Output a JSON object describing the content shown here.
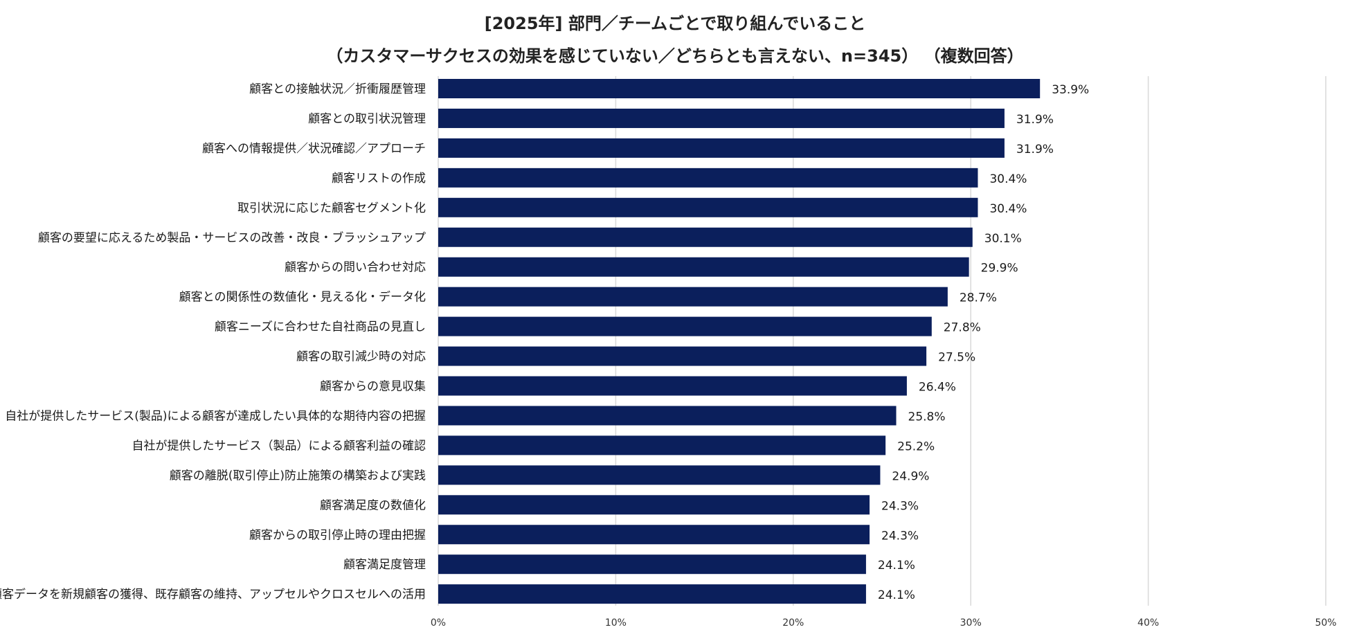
{
  "chart_data": {
    "type": "bar",
    "orientation": "horizontal",
    "title": "[2025年] 部門／チームごとで取り組んでいること",
    "subtitle": "（カスタマーサクセスの効果を感じていない／どちらとも言えない、n=345） （複数回答）",
    "categories": [
      "顧客との接触状況／折衝履歴管理",
      "顧客との取引状況管理",
      "顧客への情報提供／状況確認／アプローチ",
      "顧客リストの作成",
      "取引状況に応じた顧客セグメント化",
      "顧客の要望に応えるため製品・サービスの改善・改良・ブラッシュアップ",
      "顧客からの問い合わせ対応",
      "顧客との関係性の数値化・見える化・データ化",
      "顧客ニーズに合わせた自社商品の見直し",
      "顧客の取引減少時の対応",
      "顧客からの意見収集",
      "自社が提供したサービス(製品)による顧客が達成したい具体的な期待内容の把握",
      "自社が提供したサービス（製品）による顧客利益の確認",
      "顧客の離脱(取引停止)防止施策の構築および実践",
      "顧客満足度の数値化",
      "顧客からの取引停止時の理由把握",
      "顧客満足度管理",
      "顧客データを新規顧客の獲得、既存顧客の維持、アップセルやクロスセルへの活用"
    ],
    "values": [
      33.9,
      31.9,
      31.9,
      30.4,
      30.4,
      30.1,
      29.9,
      28.7,
      27.8,
      27.5,
      26.4,
      25.8,
      25.2,
      24.9,
      24.3,
      24.3,
      24.1,
      24.1
    ],
    "value_labels": [
      "33.9%",
      "31.9%",
      "31.9%",
      "30.4%",
      "30.4%",
      "30.1%",
      "29.9%",
      "28.7%",
      "27.8%",
      "27.5%",
      "26.4%",
      "25.8%",
      "25.2%",
      "24.9%",
      "24.3%",
      "24.3%",
      "24.1%",
      "24.1%"
    ],
    "xlim": [
      0,
      50
    ],
    "xticks": [
      0,
      10,
      20,
      30,
      40,
      50
    ],
    "xtick_labels": [
      "0%",
      "10%",
      "20%",
      "30%",
      "40%",
      "50%"
    ],
    "grid": true,
    "legend": "none",
    "bar_color": "#0b1f5c",
    "grid_color": "#d9d9d9"
  }
}
